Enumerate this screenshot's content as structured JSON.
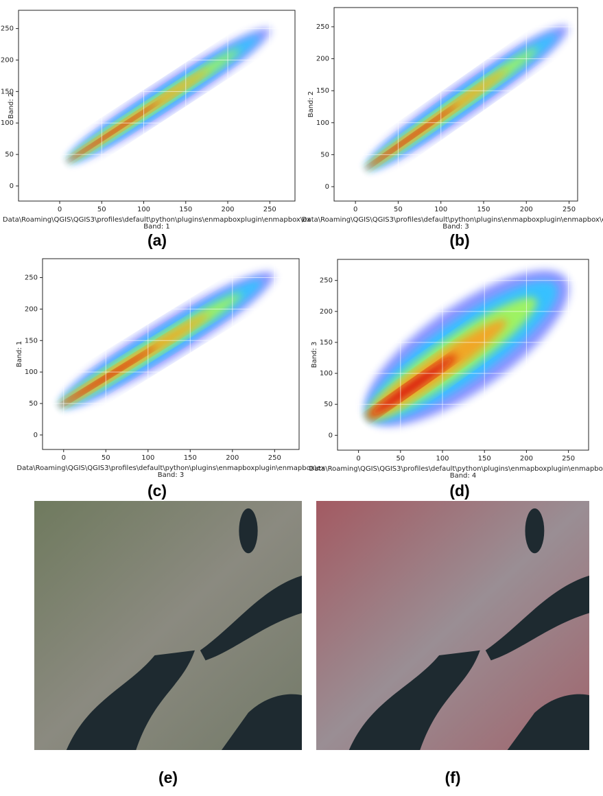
{
  "chart_data": [
    {
      "type": "density",
      "ylabel": "Band: 2",
      "xlabel_lines": [
        "Data\\Roaming\\QGIS\\QGIS3\\profiles\\default\\python\\plugins\\enmapboxplugin\\enmapbox\\ex",
        "Band: 1"
      ],
      "xlim": [
        -49,
        280
      ],
      "ylim": [
        -24,
        279
      ],
      "xticks": [
        0,
        50,
        100,
        150,
        200,
        250
      ],
      "yticks": [
        0,
        50,
        100,
        150,
        200,
        250
      ],
      "grid": true,
      "caption": "(a)"
    },
    {
      "type": "density",
      "ylabel": "Band: 2",
      "xlabel_lines": [
        "Data\\Roaming\\QGIS\\QGIS3\\profiles\\default\\python\\plugins\\enmapboxplugin\\enmapbox\\ex",
        "Band: 3"
      ],
      "xlim": [
        -25,
        260
      ],
      "ylim": [
        -22.5,
        280
      ],
      "xticks": [
        0,
        50,
        100,
        150,
        200,
        250
      ],
      "yticks": [
        0,
        50,
        100,
        150,
        200,
        250
      ],
      "grid": true,
      "caption": "(b)"
    },
    {
      "type": "density",
      "ylabel": "Band: 1",
      "xlabel_lines": [
        "Data\\Roaming\\QGIS\\QGIS3\\profiles\\default\\python\\plugins\\enmapboxplugin\\enmapbox\\ex",
        "Band: 3"
      ],
      "xlim": [
        -25,
        279
      ],
      "ylim": [
        -23,
        280
      ],
      "xticks": [
        0,
        50,
        100,
        150,
        200,
        250
      ],
      "yticks": [
        0,
        50,
        100,
        150,
        200,
        250
      ],
      "grid": true,
      "caption": "(c)"
    },
    {
      "type": "density",
      "ylabel": "Band: 3",
      "xlabel_lines": [
        "Data\\Roaming\\QGIS\\QGIS3\\profiles\\default\\python\\plugins\\enmapboxplugin\\enmapbox\\ex",
        "Band: 4"
      ],
      "xlim": [
        -25,
        274
      ],
      "ylim": [
        -24,
        284
      ],
      "xticks": [
        0,
        50,
        100,
        150,
        200,
        250
      ],
      "yticks": [
        0,
        50,
        100,
        150,
        200,
        250
      ],
      "grid": true,
      "caption": "(d)"
    }
  ],
  "images": [
    {
      "caption": "(e)"
    },
    {
      "caption": "(f)"
    }
  ]
}
